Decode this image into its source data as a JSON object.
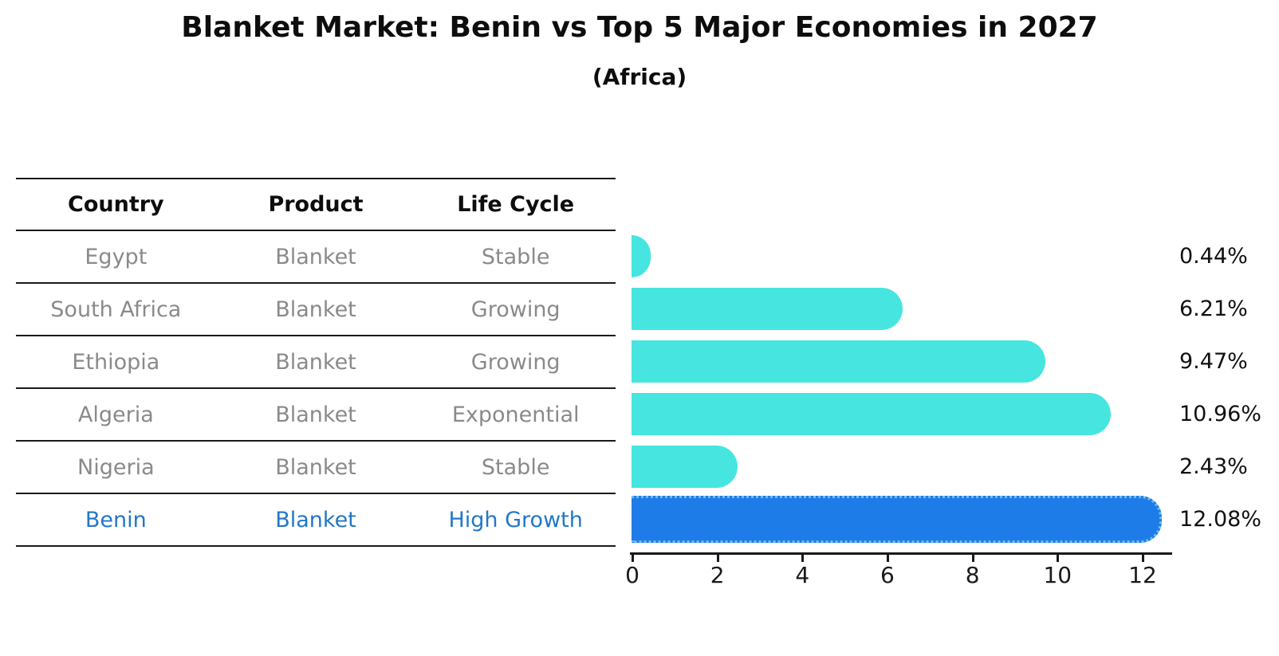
{
  "title": "Blanket Market: Benin vs Top 5 Major Economies in 2027",
  "subtitle": "(Africa)",
  "table": {
    "headers": [
      "Country",
      "Product",
      "Life Cycle"
    ],
    "rows": [
      {
        "country": "Egypt",
        "product": "Blanket",
        "life_cycle": "Stable",
        "highlight": false
      },
      {
        "country": "South Africa",
        "product": "Blanket",
        "life_cycle": "Growing",
        "highlight": false
      },
      {
        "country": "Ethiopia",
        "product": "Blanket",
        "life_cycle": "Growing",
        "highlight": false
      },
      {
        "country": "Algeria",
        "product": "Blanket",
        "life_cycle": "Exponential",
        "highlight": false
      },
      {
        "country": "Nigeria",
        "product": "Blanket",
        "life_cycle": "Stable",
        "highlight": false
      },
      {
        "country": "Benin",
        "product": "Blanket",
        "life_cycle": "High Growth",
        "highlight": true
      }
    ]
  },
  "chart_data": {
    "type": "bar",
    "orientation": "horizontal",
    "title": "Blanket Market: Benin vs Top 5 Major Economies in 2027",
    "subtitle": "(Africa)",
    "categories": [
      "Egypt",
      "South Africa",
      "Ethiopia",
      "Algeria",
      "Nigeria",
      "Benin"
    ],
    "values": [
      0.44,
      6.21,
      9.47,
      10.96,
      2.43,
      12.08
    ],
    "value_labels": [
      "0.44%",
      "6.21%",
      "9.47%",
      "10.96%",
      "2.43%",
      "12.08%"
    ],
    "highlight_index": 5,
    "xlabel": "",
    "ylabel": "",
    "xlim": [
      0,
      12.75
    ],
    "x_ticks": [
      0,
      2,
      4,
      6,
      8,
      10,
      12
    ],
    "grid": false,
    "legend": false
  },
  "colors": {
    "bar": "#46e5e0",
    "highlight_bar": "#1e7ce8",
    "highlight_bar_edge": "#6fbbf2",
    "highlight_text": "#2277c8",
    "table_text": "#8a8a8a",
    "header_text": "#0d0d0d",
    "axis": "#1a1a1a"
  }
}
